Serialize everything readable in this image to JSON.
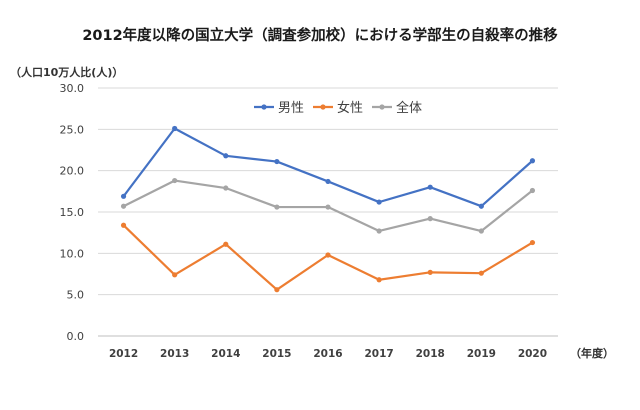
{
  "chart_data": {
    "type": "line",
    "title": "2012年度以降の国立大学（調査参加校）における学部生の自殺率の推移",
    "ylabel": "（人口10万人比(人)）",
    "xlabel": "（年度）",
    "ylim": [
      0,
      30
    ],
    "yticks": [
      "0.0",
      "5.0",
      "10.0",
      "15.0",
      "20.0",
      "25.0",
      "30.0"
    ],
    "grid": true,
    "legend_position": "top-center",
    "categories": [
      "2012",
      "2013",
      "2014",
      "2015",
      "2016",
      "2017",
      "2018",
      "2019",
      "2020"
    ],
    "series": [
      {
        "name": "男性",
        "color": "#4472c4",
        "values": [
          16.9,
          25.1,
          21.8,
          21.1,
          18.7,
          16.2,
          18.0,
          15.7,
          21.2
        ]
      },
      {
        "name": "女性",
        "color": "#ed7d31",
        "values": [
          13.4,
          7.4,
          11.1,
          5.6,
          9.8,
          6.8,
          7.7,
          7.6,
          11.3
        ]
      },
      {
        "name": "全体",
        "color": "#a5a5a5",
        "values": [
          15.7,
          18.8,
          17.9,
          15.6,
          15.6,
          12.7,
          14.2,
          12.7,
          17.6
        ]
      }
    ]
  }
}
